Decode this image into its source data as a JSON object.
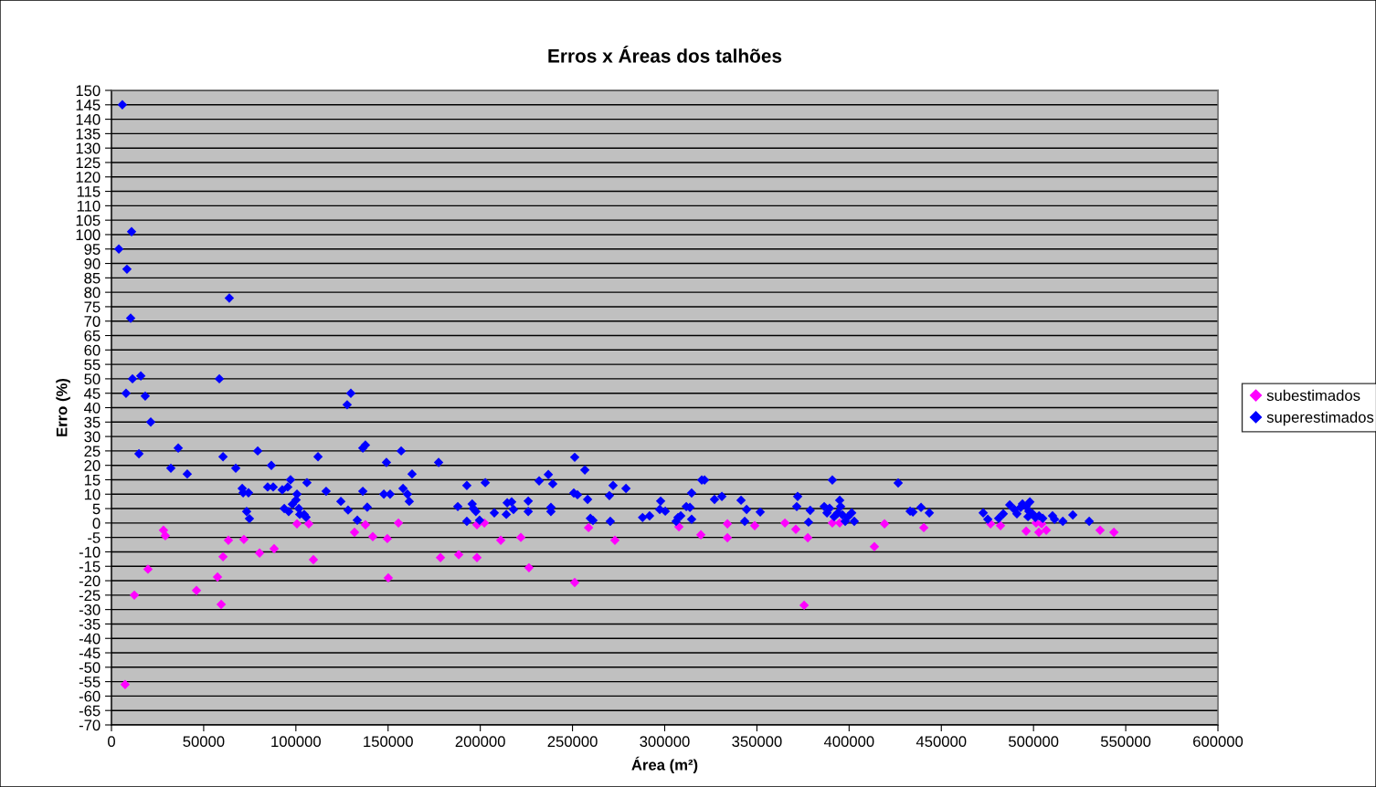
{
  "chart_data": {
    "type": "scatter",
    "title": "Erros x Áreas dos talhões",
    "xlabel": "Área (m²)",
    "ylabel": "Erro (%)",
    "xlim": [
      0,
      600000
    ],
    "xticks": [
      0,
      50000,
      100000,
      150000,
      200000,
      250000,
      300000,
      350000,
      400000,
      450000,
      500000,
      550000,
      600000
    ],
    "ylim": [
      -70,
      150
    ],
    "yticks": [
      -70,
      -65,
      -60,
      -55,
      -50,
      -45,
      -40,
      -35,
      -30,
      -25,
      -20,
      -15,
      -10,
      -5,
      0,
      5,
      10,
      15,
      20,
      25,
      30,
      35,
      40,
      45,
      50,
      55,
      60,
      65,
      70,
      75,
      80,
      85,
      90,
      95,
      100,
      105,
      110,
      115,
      120,
      125,
      130,
      135,
      140,
      145,
      150
    ],
    "grid": "y",
    "legend": "right",
    "marker": "diamond",
    "series": [
      {
        "name": "subestimados",
        "color": "#ff00ff",
        "x": [
          7400,
          12400,
          19800,
          28200,
          29200,
          46100,
          57500,
          59500,
          60500,
          63400,
          71800,
          80300,
          88200,
          100600,
          107000,
          109500,
          131800,
          137700,
          141700,
          149600,
          150100,
          155600,
          178400,
          188300,
          198200,
          198200,
          202200,
          211100,
          222000,
          226400,
          251200,
          258700,
          273000,
          307700,
          319600,
          334000,
          334000,
          348800,
          365200,
          371100,
          375600,
          377600,
          390900,
          394900,
          413700,
          419200,
          440500,
          476700,
          482100,
          496000,
          501400,
          504400,
          502900,
          506900,
          536100,
          543600
        ],
        "values": [
          -56,
          -25,
          -16,
          -2.5,
          -4.4,
          -23.4,
          -18.7,
          -28.2,
          -11.7,
          -6,
          -5.7,
          -10.4,
          -8.9,
          -0.3,
          -0.3,
          -12.7,
          -3.2,
          -0.6,
          -4.7,
          -5.4,
          -19,
          0,
          -12,
          -11,
          -0.6,
          -12,
          0,
          -6,
          -5,
          -15.5,
          -20.6,
          -1.6,
          -6,
          -1.3,
          -4.1,
          -0.3,
          -5.1,
          -0.9,
          0,
          -2.2,
          -28.5,
          -5.1,
          0,
          0,
          -8.2,
          -0.3,
          -1.6,
          -0.3,
          -0.9,
          -2.8,
          0,
          -0.3,
          -3.2,
          -2.5,
          -2.5,
          -3.2
        ]
      },
      {
        "name": "superestimados",
        "color": "#0000ff",
        "x": [
          5900,
          4000,
          8400,
          10900,
          10400,
          7900,
          11400,
          15900,
          18300,
          21300,
          14900,
          32200,
          36200,
          41100,
          58500,
          63900,
          60500,
          67400,
          70900,
          71400,
          74300,
          73300,
          74800,
          79300,
          86700,
          84700,
          87700,
          92600,
          95600,
          97100,
          93700,
          96100,
          98100,
          100100,
          100600,
          101600,
          102100,
          105500,
          104500,
          106000,
          112000,
          116400,
          124400,
          128300,
          127800,
          129800,
          133300,
          136300,
          137700,
          136300,
          138700,
          149100,
          151100,
          147700,
          157100,
          158100,
          160500,
          161500,
          163000,
          177400,
          187800,
          192700,
          192700,
          195600,
          196200,
          197600,
          199600,
          202700,
          207600,
          214100,
          214600,
          217000,
          218000,
          226000,
          226000,
          231900,
          236900,
          239300,
          238300,
          238300,
          250700,
          251200,
          252700,
          256700,
          258200,
          259700,
          261100,
          270000,
          270500,
          272000,
          279000,
          288000,
          291800,
          297800,
          297300,
          300300,
          306200,
          307200,
          308700,
          311700,
          313700,
          314600,
          314600,
          320100,
          321600,
          327000,
          331000,
          341400,
          344400,
          343400,
          351800,
          372100,
          371600,
          378000,
          378900,
          386500,
          388000,
          390900,
          389400,
          391900,
          393900,
          394900,
          395400,
          396400,
          397900,
          399400,
          401400,
          402800,
          426600,
          433100,
          434600,
          439000,
          443500,
          472700,
          475200,
          481100,
          483600,
          487100,
          489600,
          491000,
          493000,
          494000,
          496000,
          497500,
          498000,
          497000,
          499500,
          501000,
          503000,
          505000,
          510300,
          511400,
          515900,
          521300,
          530200
        ],
        "values": [
          145,
          95,
          88,
          101,
          71,
          45,
          50,
          51,
          44,
          35,
          24,
          19,
          26,
          17,
          50,
          78,
          23,
          19,
          12,
          10.5,
          10.5,
          4,
          1.5,
          25,
          20,
          12.5,
          12.5,
          11.5,
          12.5,
          15,
          5,
          4,
          6.5,
          8,
          10,
          5,
          3,
          2,
          3,
          14,
          23,
          11,
          7.5,
          4.5,
          41,
          45,
          1,
          26,
          27,
          11,
          5.5,
          21,
          10,
          10,
          25,
          12,
          10,
          7.5,
          17,
          21,
          5.7,
          13,
          0.6,
          6.6,
          5,
          4,
          1,
          14,
          3.5,
          3,
          7,
          7.3,
          4.7,
          7.6,
          4,
          14.6,
          16.8,
          13.6,
          5.4,
          4,
          10.4,
          22.8,
          9.8,
          18.4,
          8.2,
          1.6,
          0.9,
          9.5,
          0.6,
          13,
          12,
          1.9,
          2.5,
          7.6,
          4.7,
          4.1,
          0.6,
          1.9,
          2.5,
          5.7,
          5.4,
          1.3,
          10.4,
          14.9,
          14.9,
          8.2,
          9.2,
          7.9,
          4.7,
          0.6,
          3.8,
          9.2,
          5.7,
          0.3,
          4.4,
          5.7,
          3.5,
          14.9,
          5.1,
          2.2,
          3.5,
          7.9,
          5.7,
          2.8,
          0.6,
          2.2,
          3.5,
          0.6,
          13.9,
          4.1,
          3.8,
          5.4,
          3.5,
          3.5,
          1.3,
          1.6,
          3.2,
          6.3,
          4.7,
          3.2,
          5.4,
          6.6,
          5.7,
          4.1,
          7.3,
          2.2,
          3.2,
          1.9,
          2.5,
          1.6,
          2.5,
          1.3,
          0.6,
          2.8,
          0.6
        ]
      }
    ]
  }
}
